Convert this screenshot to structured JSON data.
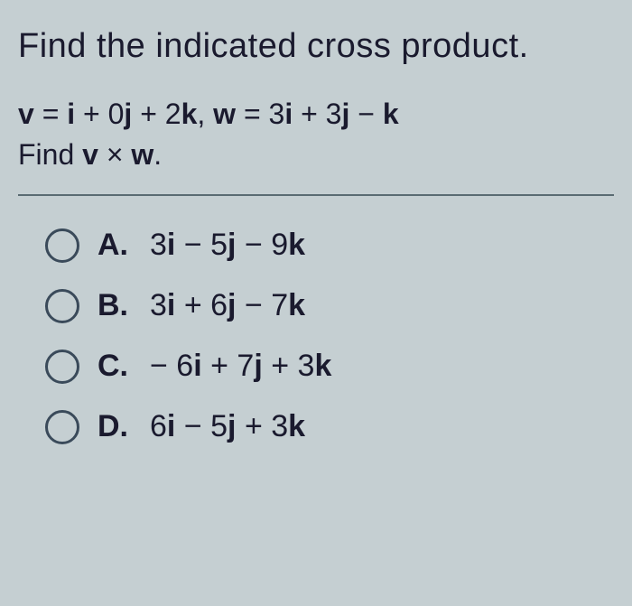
{
  "question": {
    "title": "Find the indicated cross product.",
    "vectors_line_html": "<span class='bold'>v</span> = <span class='bold'>i</span> + 0<span class='bold'>j</span> + 2<span class='bold'>k</span>, <span class='bold'>w</span> = 3<span class='bold'>i</span> + 3<span class='bold'>j</span> − <span class='bold'>k</span>",
    "find_line_html": "Find <span class='bold'>v</span> × <span class='bold'>w</span>."
  },
  "options": [
    {
      "label": "A.",
      "text_html": "3<span class='bold'>i</span> − 5<span class='bold'>j</span> − 9<span class='bold'>k</span>",
      "selected": false
    },
    {
      "label": "B.",
      "text_html": "3<span class='bold'>i</span> + 6<span class='bold'>j</span> − 7<span class='bold'>k</span>",
      "selected": false
    },
    {
      "label": "C.",
      "text_html": "− 6<span class='bold'>i</span> + 7<span class='bold'>j</span> + 3<span class='bold'>k</span>",
      "selected": false
    },
    {
      "label": "D.",
      "text_html": "6<span class='bold'>i</span> − 5<span class='bold'>j</span> + 3<span class='bold'>k</span>",
      "selected": false
    }
  ],
  "style": {
    "background_color": "#c5cfd2",
    "text_color": "#1a1a2e",
    "divider_color": "#5a6b72",
    "radio_border_color": "#3a4a5a",
    "title_fontsize": 38,
    "body_fontsize": 32,
    "option_fontsize": 34
  }
}
